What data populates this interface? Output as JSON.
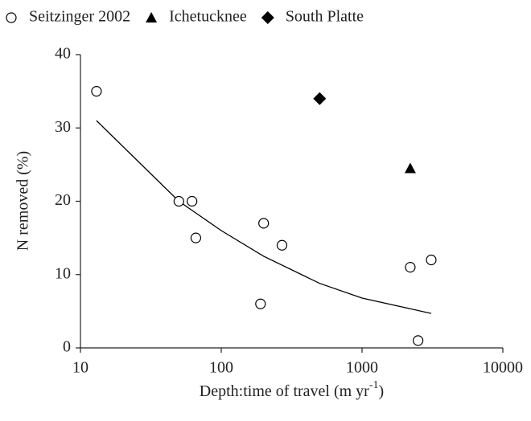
{
  "chart_data": {
    "type": "scatter",
    "x_label": "Depth:time of travel (m yr",
    "x_label_superscript": "-1",
    "x_label_end": ")",
    "y_label": "N removed (%)",
    "x_scale": "log",
    "xlim": [
      10,
      10000
    ],
    "xticks": [
      10,
      100,
      1000,
      10000
    ],
    "ylim": [
      0,
      40
    ],
    "yticks": [
      0,
      10,
      20,
      30,
      40
    ],
    "grid": false,
    "legend": "top",
    "series": [
      {
        "name": "Seitzinger 2002",
        "color": "#000000",
        "marker": "circle-open",
        "x": [
          13,
          50,
          62,
          66,
          190,
          200,
          270,
          2200,
          2500,
          3100
        ],
        "values": [
          35,
          20,
          20,
          15,
          6,
          17,
          14,
          11,
          1,
          12
        ]
      },
      {
        "name": "Ichetucknee",
        "color": "#000000",
        "marker": "triangle",
        "x": [
          2200
        ],
        "values": [
          24.5
        ]
      },
      {
        "name": "South Platte",
        "color": "#000000",
        "marker": "diamond",
        "x": [
          500
        ],
        "values": [
          34
        ]
      }
    ],
    "trend": {
      "color": "#000000",
      "x": [
        13,
        50,
        100,
        200,
        500,
        1000,
        3100
      ],
      "values": [
        31,
        20,
        16,
        12.5,
        8.8,
        6.8,
        4.7
      ]
    }
  }
}
